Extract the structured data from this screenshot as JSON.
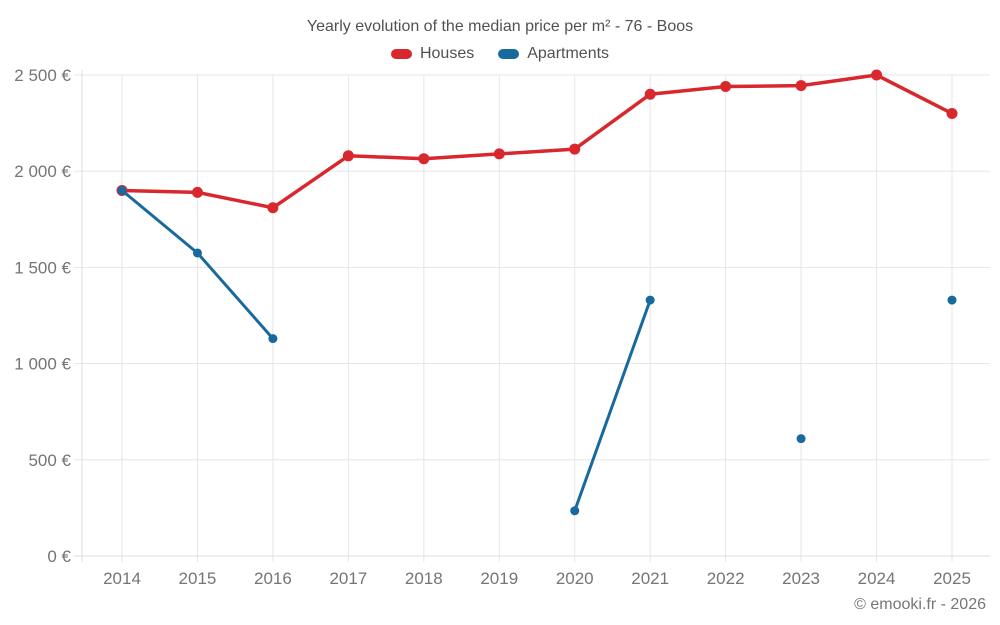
{
  "header": {
    "title": "Yearly evolution of the median price per m² - 76 - Boos"
  },
  "legend": {
    "items": [
      {
        "label": "Houses",
        "color": "#d8282d"
      },
      {
        "label": "Apartments",
        "color": "#186a9e"
      }
    ]
  },
  "footer": {
    "copyright": "© emooki.fr - 2026"
  },
  "chart_data": {
    "type": "line",
    "title": "Yearly evolution of the median price per m² - 76 - Boos",
    "categories": [
      "2014",
      "2015",
      "2016",
      "2017",
      "2018",
      "2019",
      "2020",
      "2021",
      "2022",
      "2023",
      "2024",
      "2025"
    ],
    "series": [
      {
        "name": "Houses",
        "color": "#d8282d",
        "values": [
          1900,
          1890,
          1810,
          2080,
          2065,
          2090,
          2115,
          2400,
          2440,
          2445,
          2500,
          2300
        ]
      },
      {
        "name": "Apartments",
        "color": "#186a9e",
        "values": [
          1900,
          1575,
          1130,
          null,
          null,
          null,
          235,
          1330,
          null,
          610,
          null,
          1330
        ]
      }
    ],
    "xlabel": "",
    "ylabel": "",
    "ylim": [
      0,
      2500
    ],
    "ytick_step": 500,
    "ytick_labels": [
      "0 €",
      "500 €",
      "1 000 €",
      "1 500 €",
      "2 000 €",
      "2 500 €"
    ],
    "unit": "€",
    "grid": true,
    "legend_position": "top"
  }
}
